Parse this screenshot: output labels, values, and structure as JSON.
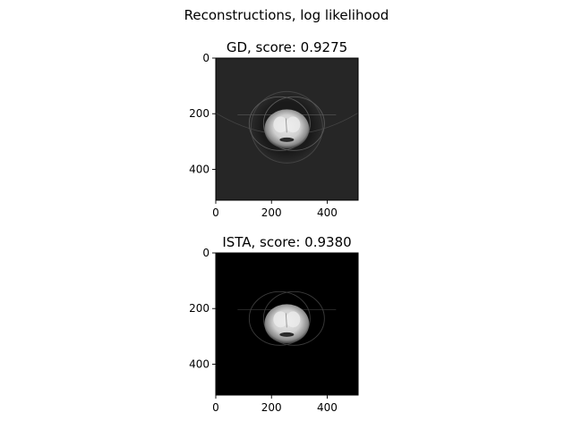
{
  "figure": {
    "suptitle": "Reconstructions, log likelihood"
  },
  "chart_data": [
    {
      "type": "heatmap",
      "title": "GD, score: 0.9275",
      "method": "GD",
      "score": 0.9275,
      "colormap": "gray",
      "background_level": 0.15,
      "xticks": [
        0,
        200,
        400
      ],
      "yticks": [
        0,
        200,
        400
      ],
      "xlim": [
        0,
        511
      ],
      "ylim": [
        511,
        0
      ],
      "xlabel": "",
      "ylabel": ""
    },
    {
      "type": "heatmap",
      "title": "ISTA, score: 0.9380",
      "method": "ISTA",
      "score": 0.938,
      "colormap": "gray",
      "background_level": 0.0,
      "xticks": [
        0,
        200,
        400
      ],
      "yticks": [
        0,
        200,
        400
      ],
      "xlim": [
        0,
        511
      ],
      "ylim": [
        511,
        0
      ],
      "xlabel": "",
      "ylabel": ""
    }
  ]
}
